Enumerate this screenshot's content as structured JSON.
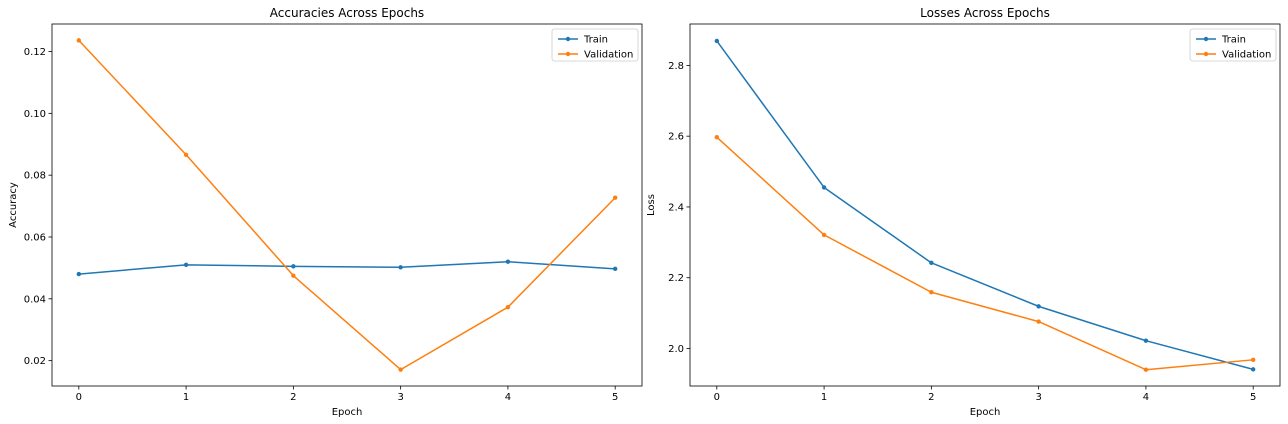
{
  "chart_data": [
    {
      "type": "line",
      "title": "Accuracies Across Epochs",
      "xlabel": "Epoch",
      "ylabel": "Accuracy",
      "x": [
        0,
        1,
        2,
        3,
        4,
        5
      ],
      "xticks": [
        "0",
        "1",
        "2",
        "3",
        "4",
        "5"
      ],
      "yticks": [
        "0.02",
        "0.04",
        "0.06",
        "0.08",
        "0.10",
        "0.12"
      ],
      "ylim": [
        0.0118,
        0.1289
      ],
      "grid": false,
      "legend_position": "top-right",
      "series": [
        {
          "name": "Train",
          "color": "#1f77b4",
          "values": [
            0.048,
            0.051,
            0.0505,
            0.0502,
            0.052,
            0.0497
          ]
        },
        {
          "name": "Validation",
          "color": "#ff7f0e",
          "values": [
            0.1236,
            0.0866,
            0.0475,
            0.0171,
            0.0373,
            0.0727
          ]
        }
      ]
    },
    {
      "type": "line",
      "title": "Losses Across Epochs",
      "xlabel": "Epoch",
      "ylabel": "Loss",
      "x": [
        0,
        1,
        2,
        3,
        4,
        5
      ],
      "xticks": [
        "0",
        "1",
        "2",
        "3",
        "4",
        "5"
      ],
      "yticks": [
        "2.0",
        "2.2",
        "2.4",
        "2.6",
        "2.8"
      ],
      "ylim": [
        1.894,
        2.917
      ],
      "grid": false,
      "legend_position": "top-right",
      "series": [
        {
          "name": "Train",
          "color": "#1f77b4",
          "values": [
            2.869,
            2.455,
            2.242,
            2.119,
            2.022,
            1.941
          ]
        },
        {
          "name": "Validation",
          "color": "#ff7f0e",
          "values": [
            2.597,
            2.321,
            2.159,
            2.076,
            1.94,
            1.968
          ]
        }
      ]
    }
  ]
}
